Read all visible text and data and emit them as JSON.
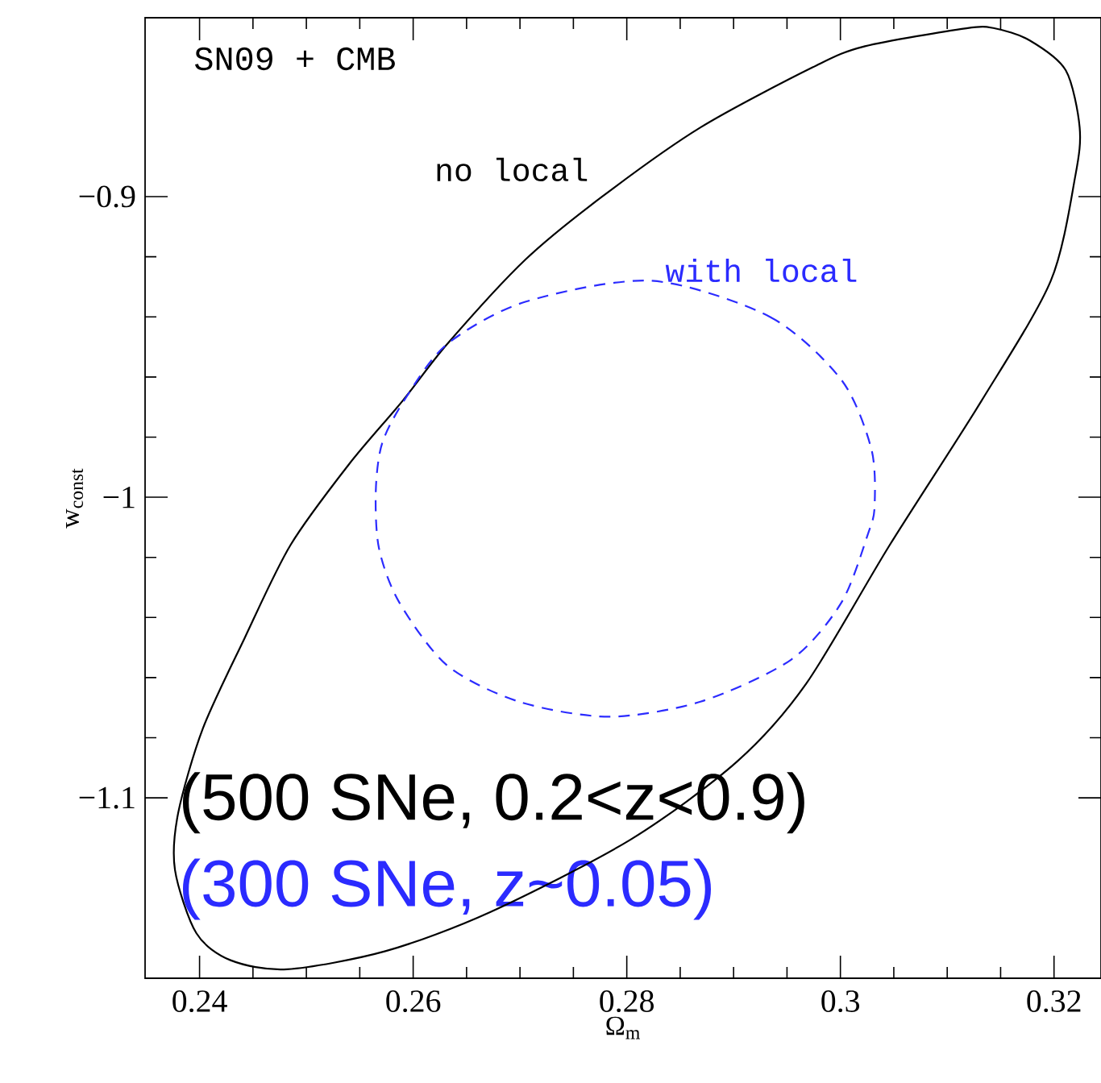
{
  "chart_data": {
    "type": "line",
    "xlabel": "Ω$_{m}$",
    "ylabel": "w$_{const}$",
    "annotations": [
      "SN09 + CMB",
      "no local",
      "with local",
      "(500 SNe, 0.2<z<0.9)",
      "(300 SNe, z~0.05)"
    ],
    "xlim": [
      0.2349,
      0.3244
    ],
    "ylim": [
      -1.16,
      -0.8405
    ],
    "xticks": [
      0.24,
      0.26,
      0.28,
      0.3,
      0.32
    ],
    "yticks": [
      {
        "value": -1.1,
        "label": "−1.1"
      },
      {
        "value": -1,
        "label": "−1"
      },
      {
        "value": -0.9,
        "label": "−0.9"
      }
    ]
  }
}
